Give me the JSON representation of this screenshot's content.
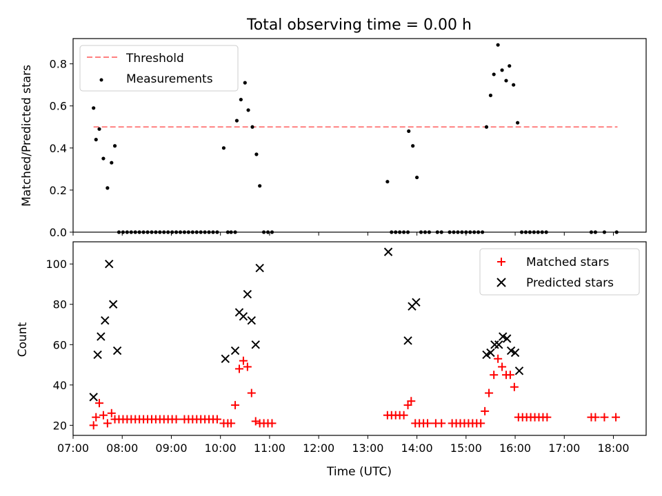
{
  "chart_data": [
    {
      "type": "scatter",
      "title": "Total observing time = 0.00 h",
      "xlabel": "",
      "ylabel": "Matched/Predicted stars",
      "xlim": [
        "07:00",
        "18:40"
      ],
      "ylim": [
        0,
        0.92
      ],
      "yticks": [
        "0.0",
        "0.2",
        "0.4",
        "0.6",
        "0.8"
      ],
      "legend": {
        "position": "top-left",
        "entries": [
          "Threshold",
          "Measurements"
        ]
      },
      "threshold": {
        "name": "Threshold",
        "value": 0.5,
        "x_start": "07:25",
        "x_end": "18:05",
        "color": "#ff7f7f"
      },
      "series": [
        {
          "name": "Measurements",
          "color": "#000000",
          "points": [
            [
              "07:25",
              0.59
            ],
            [
              "07:28",
              0.44
            ],
            [
              "07:32",
              0.49
            ],
            [
              "07:37",
              0.35
            ],
            [
              "07:42",
              0.21
            ],
            [
              "07:47",
              0.33
            ],
            [
              "07:51",
              0.41
            ],
            [
              "07:56",
              0
            ],
            [
              "08:01",
              0
            ],
            [
              "08:06",
              0
            ],
            [
              "08:11",
              0
            ],
            [
              "08:16",
              0
            ],
            [
              "08:21",
              0
            ],
            [
              "08:26",
              0
            ],
            [
              "08:31",
              0
            ],
            [
              "08:36",
              0
            ],
            [
              "08:41",
              0
            ],
            [
              "08:46",
              0
            ],
            [
              "08:51",
              0
            ],
            [
              "08:56",
              0
            ],
            [
              "09:01",
              0
            ],
            [
              "09:06",
              0
            ],
            [
              "09:11",
              0
            ],
            [
              "09:16",
              0
            ],
            [
              "09:21",
              0
            ],
            [
              "09:26",
              0
            ],
            [
              "09:31",
              0
            ],
            [
              "09:36",
              0
            ],
            [
              "09:41",
              0
            ],
            [
              "09:46",
              0
            ],
            [
              "09:51",
              0
            ],
            [
              "09:56",
              0
            ],
            [
              "10:04",
              0.4
            ],
            [
              "10:09",
              0
            ],
            [
              "10:13",
              0
            ],
            [
              "10:18",
              0
            ],
            [
              "10:20",
              0.53
            ],
            [
              "10:25",
              0.63
            ],
            [
              "10:30",
              0.71
            ],
            [
              "10:34",
              0.58
            ],
            [
              "10:39",
              0.5
            ],
            [
              "10:44",
              0.37
            ],
            [
              "10:48",
              0.22
            ],
            [
              "10:53",
              0
            ],
            [
              "10:58",
              0
            ],
            [
              "11:03",
              0
            ],
            [
              "13:24",
              0.24
            ],
            [
              "13:29",
              0
            ],
            [
              "13:34",
              0
            ],
            [
              "13:39",
              0
            ],
            [
              "13:44",
              0
            ],
            [
              "13:49",
              0
            ],
            [
              "13:50",
              0.48
            ],
            [
              "13:55",
              0.41
            ],
            [
              "14:00",
              0.26
            ],
            [
              "14:05",
              0
            ],
            [
              "14:10",
              0
            ],
            [
              "14:15",
              0
            ],
            [
              "14:25",
              0
            ],
            [
              "14:30",
              0
            ],
            [
              "14:40",
              0
            ],
            [
              "14:45",
              0
            ],
            [
              "14:50",
              0
            ],
            [
              "14:55",
              0
            ],
            [
              "15:00",
              0
            ],
            [
              "15:05",
              0
            ],
            [
              "15:10",
              0
            ],
            [
              "15:15",
              0
            ],
            [
              "15:20",
              0
            ],
            [
              "15:25",
              0.5
            ],
            [
              "15:30",
              0.65
            ],
            [
              "15:34",
              0.75
            ],
            [
              "15:39",
              0.89
            ],
            [
              "15:44",
              0.77
            ],
            [
              "15:49",
              0.72
            ],
            [
              "15:53",
              0.79
            ],
            [
              "15:58",
              0.7
            ],
            [
              "16:03",
              0.52
            ],
            [
              "16:08",
              0
            ],
            [
              "16:13",
              0
            ],
            [
              "16:18",
              0
            ],
            [
              "16:23",
              0
            ],
            [
              "16:28",
              0
            ],
            [
              "16:33",
              0
            ],
            [
              "16:38",
              0
            ],
            [
              "17:33",
              0
            ],
            [
              "17:38",
              0
            ],
            [
              "17:49",
              0
            ],
            [
              "18:04",
              0
            ]
          ]
        }
      ]
    },
    {
      "type": "scatter",
      "title": "",
      "xlabel": "Time (UTC)",
      "ylabel": "Count",
      "xlim": [
        "07:00",
        "18:40"
      ],
      "ylim": [
        15,
        111
      ],
      "xticks": [
        "07:00",
        "08:00",
        "09:00",
        "10:00",
        "11:00",
        "12:00",
        "13:00",
        "14:00",
        "15:00",
        "16:00",
        "17:00",
        "18:00"
      ],
      "yticks": [
        "20",
        "40",
        "60",
        "80",
        "100"
      ],
      "legend": {
        "position": "top-right",
        "entries": [
          "Matched stars",
          "Predicted stars"
        ]
      },
      "series": [
        {
          "name": "Matched stars",
          "marker": "plus",
          "color": "#ff0000",
          "points": [
            [
              "07:25",
              20
            ],
            [
              "07:28",
              24
            ],
            [
              "07:32",
              31
            ],
            [
              "07:37",
              25
            ],
            [
              "07:42",
              21
            ],
            [
              "07:47",
              26
            ],
            [
              "07:51",
              23
            ],
            [
              "07:56",
              23
            ],
            [
              "08:01",
              23
            ],
            [
              "08:06",
              23
            ],
            [
              "08:11",
              23
            ],
            [
              "08:16",
              23
            ],
            [
              "08:21",
              23
            ],
            [
              "08:26",
              23
            ],
            [
              "08:31",
              23
            ],
            [
              "08:36",
              23
            ],
            [
              "08:41",
              23
            ],
            [
              "08:46",
              23
            ],
            [
              "08:51",
              23
            ],
            [
              "08:56",
              23
            ],
            [
              "09:01",
              23
            ],
            [
              "09:06",
              23
            ],
            [
              "09:16",
              23
            ],
            [
              "09:21",
              23
            ],
            [
              "09:26",
              23
            ],
            [
              "09:31",
              23
            ],
            [
              "09:36",
              23
            ],
            [
              "09:41",
              23
            ],
            [
              "09:46",
              23
            ],
            [
              "09:51",
              23
            ],
            [
              "09:56",
              23
            ],
            [
              "10:04",
              21
            ],
            [
              "10:09",
              21
            ],
            [
              "10:13",
              21
            ],
            [
              "10:18",
              30
            ],
            [
              "10:23",
              48
            ],
            [
              "10:28",
              52
            ],
            [
              "10:33",
              49
            ],
            [
              "10:38",
              36
            ],
            [
              "10:43",
              22
            ],
            [
              "10:48",
              21
            ],
            [
              "10:53",
              21
            ],
            [
              "10:58",
              21
            ],
            [
              "11:03",
              21
            ],
            [
              "13:24",
              25
            ],
            [
              "13:29",
              25
            ],
            [
              "13:34",
              25
            ],
            [
              "13:39",
              25
            ],
            [
              "13:44",
              25
            ],
            [
              "13:49",
              30
            ],
            [
              "13:53",
              32
            ],
            [
              "13:58",
              21
            ],
            [
              "14:03",
              21
            ],
            [
              "14:08",
              21
            ],
            [
              "14:13",
              21
            ],
            [
              "14:23",
              21
            ],
            [
              "14:30",
              21
            ],
            [
              "14:43",
              21
            ],
            [
              "14:48",
              21
            ],
            [
              "14:53",
              21
            ],
            [
              "14:58",
              21
            ],
            [
              "15:03",
              21
            ],
            [
              "15:08",
              21
            ],
            [
              "15:13",
              21
            ],
            [
              "15:18",
              21
            ],
            [
              "15:23",
              27
            ],
            [
              "15:28",
              36
            ],
            [
              "15:34",
              45
            ],
            [
              "15:39",
              53
            ],
            [
              "15:44",
              49
            ],
            [
              "15:49",
              45
            ],
            [
              "15:54",
              45
            ],
            [
              "15:59",
              39
            ],
            [
              "16:04",
              24
            ],
            [
              "16:09",
              24
            ],
            [
              "16:14",
              24
            ],
            [
              "16:19",
              24
            ],
            [
              "16:24",
              24
            ],
            [
              "16:29",
              24
            ],
            [
              "16:34",
              24
            ],
            [
              "16:39",
              24
            ],
            [
              "17:33",
              24
            ],
            [
              "17:38",
              24
            ],
            [
              "17:49",
              24
            ],
            [
              "18:03",
              24
            ]
          ]
        },
        {
          "name": "Predicted stars",
          "marker": "x",
          "color": "#000000",
          "points": [
            [
              "07:25",
              34
            ],
            [
              "07:30",
              55
            ],
            [
              "07:34",
              64
            ],
            [
              "07:39",
              72
            ],
            [
              "07:44",
              100
            ],
            [
              "07:49",
              80
            ],
            [
              "07:54",
              57
            ],
            [
              "10:06",
              53
            ],
            [
              "10:18",
              57
            ],
            [
              "10:23",
              76
            ],
            [
              "10:28",
              74
            ],
            [
              "10:33",
              85
            ],
            [
              "10:38",
              72
            ],
            [
              "10:43",
              60
            ],
            [
              "10:48",
              98
            ],
            [
              "13:25",
              106
            ],
            [
              "13:49",
              62
            ],
            [
              "13:54",
              79
            ],
            [
              "13:59",
              81
            ],
            [
              "15:25",
              55
            ],
            [
              "15:30",
              56
            ],
            [
              "15:35",
              60
            ],
            [
              "15:40",
              60
            ],
            [
              "15:45",
              64
            ],
            [
              "15:50",
              63
            ],
            [
              "15:55",
              57
            ],
            [
              "16:00",
              56
            ],
            [
              "16:05",
              47
            ]
          ]
        }
      ]
    }
  ]
}
